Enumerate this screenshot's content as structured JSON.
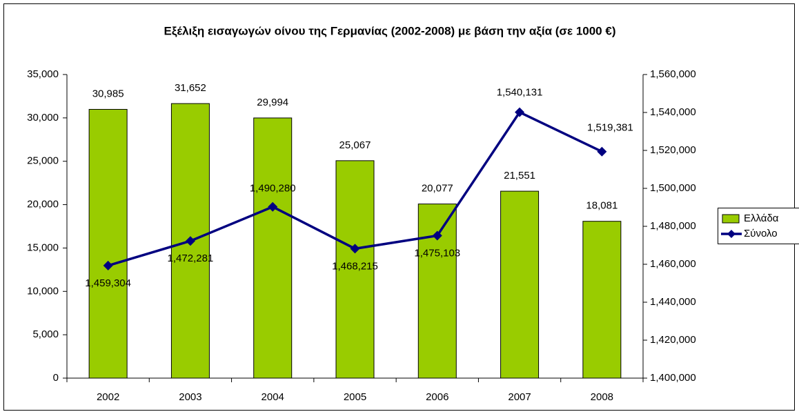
{
  "chart_data": {
    "type": "bar_line",
    "title": "Εξέλιξη εισαγωγών οίνου της Γερμανίας (2002-2008) με βάση την αξία (σε 1000 €)",
    "categories": [
      "2002",
      "2003",
      "2004",
      "2005",
      "2006",
      "2007",
      "2008"
    ],
    "series": [
      {
        "name": "Ελλάδα",
        "type": "bar",
        "color": "#99cc00",
        "values": [
          30985,
          31652,
          29994,
          25067,
          20077,
          21551,
          18081
        ],
        "value_labels": [
          "30,985",
          "31,652",
          "29,994",
          "25,067",
          "20,077",
          "21,551",
          "18,081"
        ]
      },
      {
        "name": "Σύνολο",
        "type": "line",
        "axis": "y2",
        "color": "#000080",
        "values": [
          1459304,
          1472281,
          1490280,
          1468215,
          1475103,
          1540131,
          1519381
        ],
        "value_labels": [
          "1,459,304",
          "1,472,281",
          "1,490,280",
          "1,468,215",
          "1,475,103",
          "1,540,131",
          "1,519,381"
        ]
      }
    ],
    "ylim": [
      0,
      35000
    ],
    "yticks": [
      0,
      {
        "value": 5000,
        "label": "5,000"
      },
      {
        "value": 10000,
        "label": "10,000"
      },
      {
        "value": 15000,
        "label": "15,000"
      },
      {
        "value": 20000,
        "label": "20,000"
      },
      {
        "value": 25000,
        "label": "25,000"
      },
      {
        "value": 30000,
        "label": "30,000"
      },
      {
        "value": 35000,
        "label": "35,000"
      }
    ],
    "y2lim": [
      1400000,
      1560000
    ],
    "y2ticks": [
      {
        "value": 1400000,
        "label": "1,400,000"
      },
      {
        "value": 1420000,
        "label": "1,420,000"
      },
      {
        "value": 1440000,
        "label": "1,440,000"
      },
      {
        "value": 1460000,
        "label": "1,460,000"
      },
      {
        "value": 1480000,
        "label": "1,480,000"
      },
      {
        "value": 1500000,
        "label": "1,500,000"
      },
      {
        "value": 1520000,
        "label": "1,520,000"
      },
      {
        "value": 1540000,
        "label": "1,540,000"
      },
      {
        "value": 1560000,
        "label": "1,560,000"
      }
    ],
    "legend": "right",
    "grid": false
  }
}
